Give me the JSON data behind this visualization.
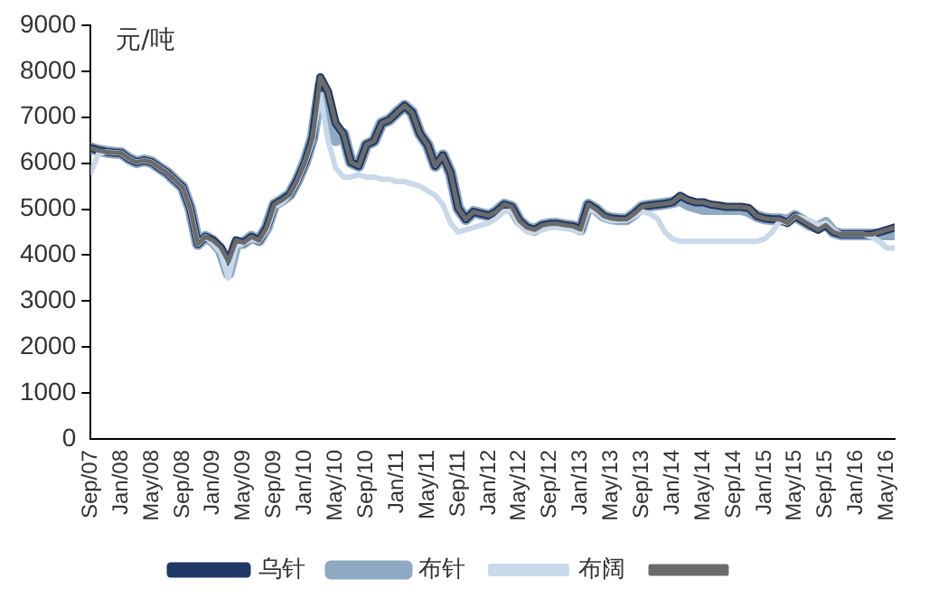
{
  "chart_data": {
    "type": "line",
    "ylabel": "元/吨",
    "ylim": [
      0,
      9000
    ],
    "yticks": [
      0,
      1000,
      2000,
      3000,
      4000,
      5000,
      6000,
      7000,
      8000,
      9000
    ],
    "xlim": [
      "2007-09",
      "2016-06"
    ],
    "xticks": [
      {
        "value": "2007-09",
        "label": "Sep/07"
      },
      {
        "value": "2008-01",
        "label": "Jan/08"
      },
      {
        "value": "2008-05",
        "label": "May/08"
      },
      {
        "value": "2008-09",
        "label": "Sep/08"
      },
      {
        "value": "2009-01",
        "label": "Jan/09"
      },
      {
        "value": "2009-05",
        "label": "May/09"
      },
      {
        "value": "2009-09",
        "label": "Sep/09"
      },
      {
        "value": "2010-01",
        "label": "Jan/10"
      },
      {
        "value": "2010-05",
        "label": "May/10"
      },
      {
        "value": "2010-09",
        "label": "Sep/10"
      },
      {
        "value": "2011-01",
        "label": "Jan/11"
      },
      {
        "value": "2011-05",
        "label": "May/11"
      },
      {
        "value": "2011-09",
        "label": "Sep/11"
      },
      {
        "value": "2012-01",
        "label": "Jan/12"
      },
      {
        "value": "2012-05",
        "label": "May/12"
      },
      {
        "value": "2012-09",
        "label": "Sep/12"
      },
      {
        "value": "2013-01",
        "label": "Jan/13"
      },
      {
        "value": "2013-05",
        "label": "May/13"
      },
      {
        "value": "2013-09",
        "label": "Sep/13"
      },
      {
        "value": "2014-01",
        "label": "Jan/14"
      },
      {
        "value": "2014-05",
        "label": "May/14"
      },
      {
        "value": "2014-09",
        "label": "Sep/14"
      },
      {
        "value": "2015-01",
        "label": "Jan/15"
      },
      {
        "value": "2015-05",
        "label": "May/15"
      },
      {
        "value": "2015-09",
        "label": "Sep/15"
      },
      {
        "value": "2016-01",
        "label": "Jan/16"
      },
      {
        "value": "2016-05",
        "label": "May/16"
      }
    ],
    "x": [
      "2007-09",
      "2007-10",
      "2007-11",
      "2007-12",
      "2008-01",
      "2008-02",
      "2008-03",
      "2008-04",
      "2008-05",
      "2008-06",
      "2008-07",
      "2008-08",
      "2008-09",
      "2008-10",
      "2008-11",
      "2008-12",
      "2009-01",
      "2009-02",
      "2009-03",
      "2009-04",
      "2009-05",
      "2009-06",
      "2009-07",
      "2009-08",
      "2009-09",
      "2009-10",
      "2009-11",
      "2009-12",
      "2010-01",
      "2010-02",
      "2010-03",
      "2010-04",
      "2010-05",
      "2010-06",
      "2010-07",
      "2010-08",
      "2010-09",
      "2010-10",
      "2010-11",
      "2010-12",
      "2011-01",
      "2011-02",
      "2011-03",
      "2011-04",
      "2011-05",
      "2011-06",
      "2011-07",
      "2011-08",
      "2011-09",
      "2011-10",
      "2011-11",
      "2011-12",
      "2012-01",
      "2012-02",
      "2012-03",
      "2012-04",
      "2012-05",
      "2012-06",
      "2012-07",
      "2012-08",
      "2012-09",
      "2012-10",
      "2012-11",
      "2012-12",
      "2013-01",
      "2013-02",
      "2013-03",
      "2013-04",
      "2013-05",
      "2013-06",
      "2013-07",
      "2013-08",
      "2013-09",
      "2013-10",
      "2013-11",
      "2013-12",
      "2014-01",
      "2014-02",
      "2014-03",
      "2014-04",
      "2014-05",
      "2014-06",
      "2014-07",
      "2014-08",
      "2014-09",
      "2014-10",
      "2014-11",
      "2014-12",
      "2015-01",
      "2015-02",
      "2015-03",
      "2015-04",
      "2015-05",
      "2015-06",
      "2015-07",
      "2015-08",
      "2015-09",
      "2015-10",
      "2015-11",
      "2015-12",
      "2016-01",
      "2016-02",
      "2016-03",
      "2016-04",
      "2016-05",
      "2016-06"
    ],
    "legend": "bottom",
    "grid": false,
    "series": [
      {
        "name": "乌针",
        "color": "#1f3864",
        "values": [
          6330,
          6280,
          6250,
          6230,
          6220,
          6100,
          6020,
          6060,
          6020,
          5900,
          5790,
          5630,
          5480,
          5020,
          4240,
          4400,
          4320,
          4170,
          3860,
          4320,
          4270,
          4400,
          4320,
          4600,
          5100,
          5200,
          5320,
          5630,
          6020,
          6560,
          7870,
          7560,
          6870,
          6640,
          6020,
          5940,
          6400,
          6480,
          6870,
          6940,
          7100,
          7250,
          7100,
          6640,
          6400,
          5940,
          6170,
          5790,
          5020,
          4780,
          4940,
          4900,
          4860,
          4950,
          5100,
          5050,
          4750,
          4600,
          4550,
          4650,
          4680,
          4680,
          4650,
          4630,
          4560,
          5100,
          5000,
          4850,
          4800,
          4780,
          4780,
          4900,
          5050,
          5080,
          5100,
          5120,
          5150,
          5290,
          5200,
          5150,
          5150,
          5100,
          5080,
          5050,
          5050,
          5050,
          5020,
          4850,
          4800,
          4780,
          4780,
          4700,
          4850,
          4750,
          4650,
          4550,
          4650,
          4500,
          4450,
          4450,
          4450,
          4450,
          4450,
          4500,
          4550,
          4600
        ]
      },
      {
        "name": "布针",
        "color": "#8ea9c1",
        "values": [
          6330,
          6280,
          6250,
          6230,
          6220,
          6100,
          6020,
          6060,
          6020,
          5900,
          5790,
          5630,
          5480,
          5020,
          4240,
          4400,
          4300,
          4100,
          3600,
          4250,
          4270,
          4400,
          4320,
          4600,
          5100,
          5200,
          5320,
          5630,
          6020,
          6560,
          7700,
          7000,
          6500,
          6640,
          6020,
          5940,
          6400,
          6480,
          6870,
          6940,
          7100,
          7250,
          7100,
          6640,
          6400,
          5940,
          6170,
          5790,
          5020,
          4780,
          4940,
          4900,
          4860,
          4950,
          5100,
          5050,
          4750,
          4600,
          4550,
          4650,
          4680,
          4680,
          4650,
          4630,
          4560,
          5100,
          5000,
          4850,
          4800,
          4780,
          4780,
          4900,
          5050,
          5080,
          5100,
          5120,
          5150,
          5200,
          5100,
          5050,
          5000,
          5000,
          5000,
          5000,
          5000,
          5000,
          4950,
          4850,
          4800,
          4780,
          4780,
          4750,
          4850,
          4750,
          4650,
          4600,
          4700,
          4500,
          4450,
          4450,
          4450,
          4450,
          4450,
          4450,
          4450,
          4450
        ]
      },
      {
        "name": "布阔",
        "color": "#c9d9ea",
        "values": [
          5800,
          6200,
          6250,
          6230,
          6220,
          6100,
          6020,
          6060,
          6020,
          5900,
          5790,
          5630,
          5480,
          5020,
          4240,
          4400,
          4250,
          4050,
          3500,
          4200,
          4250,
          4350,
          4300,
          4550,
          5050,
          5150,
          5300,
          5600,
          6000,
          6500,
          7500,
          6500,
          5900,
          5700,
          5700,
          5750,
          5700,
          5700,
          5650,
          5650,
          5600,
          5600,
          5550,
          5500,
          5400,
          5300,
          5100,
          4700,
          4500,
          4550,
          4600,
          4650,
          4700,
          4800,
          4950,
          4950,
          4650,
          4500,
          4500,
          4550,
          4600,
          4600,
          4580,
          4550,
          4500,
          5000,
          4950,
          4800,
          4750,
          4750,
          4750,
          4850,
          4950,
          4900,
          4800,
          4500,
          4350,
          4300,
          4300,
          4300,
          4300,
          4300,
          4300,
          4300,
          4300,
          4300,
          4300,
          4300,
          4350,
          4500,
          4750,
          4700,
          4850,
          4800,
          4750,
          4650,
          4700,
          4550,
          4450,
          4450,
          4450,
          4450,
          4400,
          4300,
          4150,
          4150
        ]
      },
      {
        "color": "#6b6b6b",
        "values": [
          6330,
          6280,
          6250,
          6230,
          6220,
          6100,
          6020,
          6060,
          6020,
          5900,
          5790,
          5630,
          5480,
          5020,
          4240,
          4400,
          4320,
          4170,
          3860,
          4320,
          4270,
          4400,
          4320,
          4600,
          5100,
          5200,
          5320,
          5630,
          6020,
          6560,
          7870,
          7560,
          6870,
          6640,
          6020,
          5940,
          6400,
          6480,
          6870,
          6940,
          7100,
          7250,
          7100,
          6640,
          6400,
          5940,
          6170,
          5790,
          5020,
          4780,
          4940,
          4900,
          4860,
          4950,
          5100,
          5050,
          4750,
          4600,
          4550,
          4650,
          4680,
          4680,
          4650,
          4630,
          4560,
          5100,
          5000,
          4850,
          4800,
          4780,
          4780,
          4900,
          5050,
          5080,
          5100,
          5120,
          5150,
          5290,
          5200,
          5150,
          5150,
          5100,
          5080,
          5050,
          5050,
          5050,
          5020,
          4850,
          4800,
          4780,
          4780,
          4700,
          4850,
          4750,
          4650,
          4550,
          4650,
          4500,
          4450,
          4450,
          4450,
          4450,
          4450,
          4500,
          4550,
          4600
        ]
      }
    ]
  }
}
